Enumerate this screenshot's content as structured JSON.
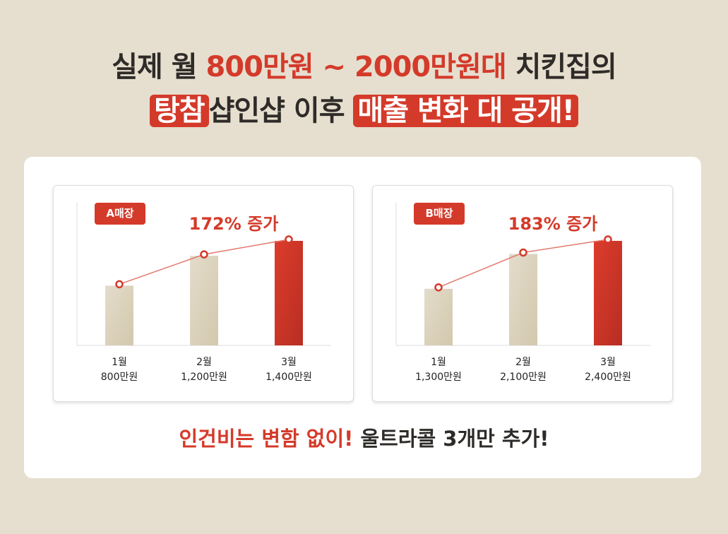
{
  "headline": {
    "line1_a": "실제 월 ",
    "line1_b": "800만원 ~ 2000만원대",
    "line1_c": " 치킨집의",
    "line2_a": "탕참",
    "line2_b": "샵인샵 이후 ",
    "line2_c": "매출 변화 대 공개!"
  },
  "chart_data": [
    {
      "type": "bar",
      "title": "A매장",
      "annotation": "172% 증가",
      "categories": [
        "1월",
        "2월",
        "3월"
      ],
      "value_labels": [
        "800만원",
        "1,200만원",
        "1,400만원"
      ],
      "values": [
        800,
        1200,
        1400
      ],
      "unit": "만원",
      "line_overlay": true,
      "highlight_index": 2
    },
    {
      "type": "bar",
      "title": "B매장",
      "annotation": "183% 증가",
      "categories": [
        "1월",
        "2월",
        "3월"
      ],
      "value_labels": [
        "1,300만원",
        "2,100만원",
        "2,400만원"
      ],
      "values": [
        1300,
        2100,
        2400
      ],
      "unit": "만원",
      "line_overlay": true,
      "highlight_index": 2
    }
  ],
  "footer": {
    "red": "인건비는 변함 없이!",
    "dark": " 울트라콜 3개만 추가!"
  },
  "colors": {
    "accent": "#d43a2a",
    "bar": "#d9d0bb",
    "text": "#2e2b28"
  }
}
